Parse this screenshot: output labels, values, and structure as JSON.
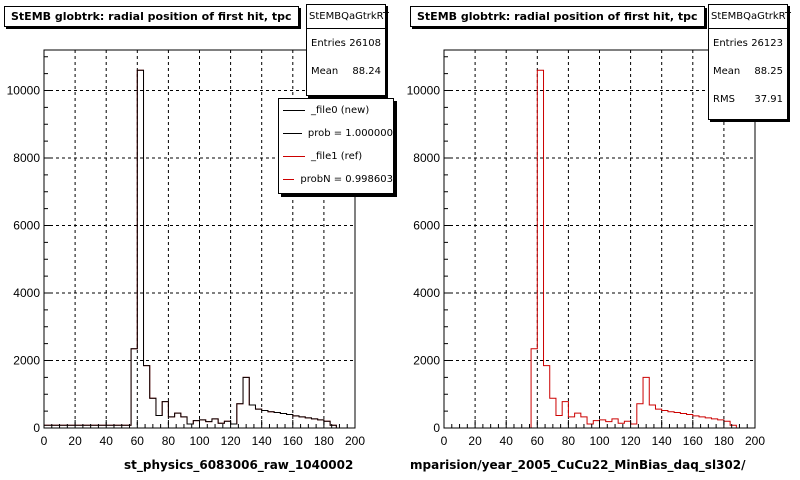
{
  "footer": "",
  "colors": {
    "new": "#000000",
    "ref": "#cc0000"
  },
  "left": {
    "title": "StEMB globtrk: radial position of first hit, tpc",
    "stats": {
      "name": "StEMBQaGtrkRT",
      "rows": [
        {
          "label": "Entries",
          "value": "26108"
        },
        {
          "label": "Mean",
          "value": "88.24"
        }
      ]
    },
    "legend": [
      {
        "label": "_file0 (new)",
        "color": "#000000"
      },
      {
        "label": "prob = 1.000000",
        "color": "#000000"
      },
      {
        "label": "_file1 (ref)",
        "color": "#cc0000"
      },
      {
        "label": "probN = 0.998603",
        "color": "#cc0000"
      }
    ],
    "xtitle": "st_physics_6083006_raw_1040002"
  },
  "right": {
    "title": "StEMB globtrk: radial position of first hit, tpc",
    "stats": {
      "name": "StEMBQaGtrkRT",
      "rows": [
        {
          "label": "Entries",
          "value": "26123"
        },
        {
          "label": "Mean",
          "value": "88.25"
        },
        {
          "label": "RMS",
          "value": "37.91"
        }
      ]
    },
    "xtitle": "mparision/year_2005_CuCu22_MinBias_daq_sl302/"
  },
  "chart_data": [
    {
      "type": "histogram",
      "title": "StEMB globtrk: radial position of first hit, tpc",
      "xlabel": "st_physics_6083006_raw_1040002",
      "ylabel": "",
      "xlim": [
        0,
        200
      ],
      "ylim": [
        0,
        11200
      ],
      "xticks": [
        0,
        20,
        40,
        60,
        80,
        100,
        120,
        140,
        160,
        180,
        200
      ],
      "yticks": [
        0,
        2000,
        4000,
        6000,
        8000,
        10000
      ],
      "grid": true,
      "bin_edges": [
        0,
        4,
        8,
        12,
        16,
        20,
        24,
        28,
        32,
        36,
        40,
        44,
        48,
        52,
        56,
        60,
        64,
        68,
        72,
        76,
        80,
        84,
        88,
        92,
        96,
        100,
        104,
        108,
        112,
        116,
        120,
        124,
        128,
        132,
        136,
        140,
        144,
        148,
        152,
        156,
        160,
        164,
        168,
        172,
        176,
        180,
        184,
        188,
        192,
        196,
        200
      ],
      "series": [
        {
          "name": "_file1 (ref)",
          "color": "#cc0000",
          "values": [
            80,
            80,
            80,
            80,
            80,
            80,
            80,
            80,
            80,
            80,
            80,
            80,
            80,
            80,
            2350,
            10600,
            1850,
            880,
            370,
            780,
            330,
            440,
            330,
            120,
            220,
            240,
            190,
            270,
            140,
            200,
            120,
            720,
            1500,
            680,
            560,
            520,
            480,
            460,
            430,
            400,
            360,
            330,
            300,
            270,
            240,
            200,
            80,
            0,
            0,
            0
          ]
        },
        {
          "name": "_file0 (new)",
          "color": "#000000",
          "values": [
            80,
            80,
            80,
            80,
            80,
            80,
            80,
            80,
            80,
            80,
            80,
            80,
            80,
            80,
            2350,
            10600,
            1850,
            880,
            370,
            780,
            330,
            440,
            330,
            120,
            220,
            240,
            190,
            270,
            140,
            200,
            120,
            720,
            1500,
            680,
            560,
            520,
            480,
            460,
            430,
            400,
            360,
            330,
            300,
            270,
            240,
            200,
            80,
            0,
            0,
            0
          ]
        }
      ]
    },
    {
      "type": "histogram",
      "title": "StEMB globtrk: radial position of first hit, tpc",
      "xlabel": "mparision/year_2005_CuCu22_MinBias_daq_sl302/",
      "ylabel": "",
      "xlim": [
        0,
        200
      ],
      "ylim": [
        0,
        11200
      ],
      "xticks": [
        0,
        20,
        40,
        60,
        80,
        100,
        120,
        140,
        160,
        180,
        200
      ],
      "yticks": [
        0,
        2000,
        4000,
        6000,
        8000,
        10000
      ],
      "grid": true,
      "bin_edges": [
        0,
        4,
        8,
        12,
        16,
        20,
        24,
        28,
        32,
        36,
        40,
        44,
        48,
        52,
        56,
        60,
        64,
        68,
        72,
        76,
        80,
        84,
        88,
        92,
        96,
        100,
        104,
        108,
        112,
        116,
        120,
        124,
        128,
        132,
        136,
        140,
        144,
        148,
        152,
        156,
        160,
        164,
        168,
        172,
        176,
        180,
        184,
        188,
        192,
        196,
        200
      ],
      "series": [
        {
          "name": "_file1 (ref)",
          "color": "#cc0000",
          "values": [
            0,
            0,
            0,
            0,
            0,
            0,
            0,
            0,
            0,
            0,
            0,
            0,
            0,
            0,
            2350,
            10600,
            1850,
            880,
            370,
            780,
            330,
            440,
            330,
            120,
            220,
            240,
            190,
            270,
            140,
            200,
            120,
            720,
            1500,
            680,
            560,
            520,
            480,
            460,
            430,
            400,
            360,
            330,
            300,
            270,
            240,
            200,
            80,
            0,
            0,
            0
          ]
        }
      ]
    }
  ]
}
